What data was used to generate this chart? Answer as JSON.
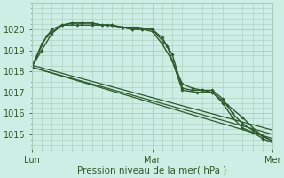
{
  "xlabel": "Pression niveau de la mer( hPa )",
  "background_color": "#cceee4",
  "grid_color": "#aaccbc",
  "line_color": "#2d5a2d",
  "ylim": [
    1014.3,
    1021.2
  ],
  "xlim": [
    0,
    48
  ],
  "xticks": [
    0,
    24,
    48
  ],
  "xticklabels": [
    "Lun",
    "Mar",
    "Mer"
  ],
  "yticks": [
    1015,
    1016,
    1017,
    1018,
    1019,
    1020
  ],
  "minor_xticks_count": 24,
  "lines": [
    {
      "x": [
        0,
        2,
        4,
        6,
        8,
        10,
        12,
        14,
        16,
        18,
        20,
        22,
        24,
        26,
        28,
        30,
        32,
        34,
        36,
        38,
        40,
        42,
        44,
        46,
        48
      ],
      "y": [
        1018.2,
        1019.3,
        1020.0,
        1020.2,
        1020.3,
        1020.3,
        1020.3,
        1020.2,
        1020.2,
        1020.1,
        1020.0,
        1020.0,
        1020.0,
        1019.6,
        1018.8,
        1017.2,
        1017.1,
        1017.1,
        1017.1,
        1016.7,
        1016.0,
        1015.5,
        1015.2,
        1014.9,
        1014.7
      ],
      "marker": true,
      "linewidth": 1.0
    },
    {
      "x": [
        0,
        2,
        4,
        6,
        8,
        10,
        12,
        14,
        16,
        18,
        20,
        22,
        24,
        26,
        28,
        30,
        32,
        34,
        36,
        38,
        40,
        42,
        44,
        46,
        48
      ],
      "y": [
        1018.2,
        1019.0,
        1019.8,
        1020.2,
        1020.3,
        1020.3,
        1020.3,
        1020.2,
        1020.2,
        1020.1,
        1020.0,
        1020.0,
        1019.9,
        1019.3,
        1018.5,
        1017.4,
        1017.2,
        1017.1,
        1017.0,
        1016.5,
        1015.8,
        1015.3,
        1015.1,
        1014.8,
        1014.6
      ],
      "marker": true,
      "linewidth": 1.0
    },
    {
      "x": [
        0,
        3,
        6,
        9,
        12,
        15,
        18,
        21,
        24,
        27,
        30,
        33,
        36,
        39,
        42,
        45,
        48
      ],
      "y": [
        1018.2,
        1019.7,
        1020.2,
        1020.2,
        1020.2,
        1020.2,
        1020.1,
        1020.1,
        1020.0,
        1019.2,
        1017.1,
        1017.0,
        1017.0,
        1016.4,
        1015.8,
        1015.1,
        1014.65
      ],
      "marker": true,
      "linewidth": 1.0
    },
    {
      "x": [
        0,
        48
      ],
      "y": [
        1018.2,
        1015.0
      ],
      "marker": false,
      "linewidth": 0.9
    },
    {
      "x": [
        0,
        48
      ],
      "y": [
        1018.2,
        1014.8
      ],
      "marker": false,
      "linewidth": 0.9
    },
    {
      "x": [
        0,
        48
      ],
      "y": [
        1018.3,
        1015.2
      ],
      "marker": false,
      "linewidth": 0.9
    }
  ]
}
